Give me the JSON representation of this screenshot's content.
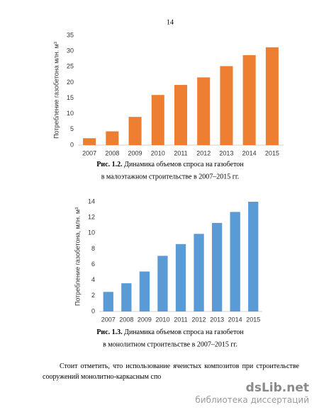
{
  "page_number": "14",
  "chart_data": [
    {
      "type": "bar",
      "ylabel": "Потребление газобетона млн. м³",
      "categories": [
        "2007",
        "2008",
        "2009",
        "2010",
        "2011",
        "2012",
        "2013",
        "2014",
        "2015"
      ],
      "values": [
        2.2,
        4.4,
        9,
        16,
        19.2,
        21.6,
        25.2,
        28.7,
        31.2
      ],
      "color": "#ed7d31",
      "ylim": [
        0,
        35
      ],
      "yticks": [
        0,
        5,
        10,
        15,
        20,
        25,
        30,
        35
      ],
      "grid": false,
      "caption": {
        "label": "Рис. 1.2.",
        "lines": [
          "Динамика объемов спроса на газобетон",
          "в малоэтажном строительстве в 2007–2015 гг."
        ]
      }
    },
    {
      "type": "bar",
      "ylabel": "Потребление газобетона, млн. м³",
      "categories": [
        "2007",
        "2008",
        "2009",
        "2010",
        "2011",
        "2012",
        "2013",
        "2014",
        "2015"
      ],
      "values": [
        2.5,
        3.6,
        5.1,
        7.1,
        8.6,
        9.9,
        11.3,
        12.7,
        14
      ],
      "color": "#5b9bd5",
      "ylim": [
        0,
        14
      ],
      "yticks": [
        0,
        2,
        4,
        6,
        8,
        10,
        12,
        14
      ],
      "grid": false,
      "caption": {
        "label": "Рис. 1.3.",
        "lines": [
          "Динамика объемов спроса на газобетон",
          "в монолитном строительстве в 2007–2015 гг."
        ]
      }
    }
  ],
  "paragraph": "Стоит отметить, что использование ячеистых композитов при строительстве сооружений монолитно-каркасным спо",
  "watermark": {
    "logo": "dsLib.net",
    "tagline": "библиотека диссертаций"
  }
}
